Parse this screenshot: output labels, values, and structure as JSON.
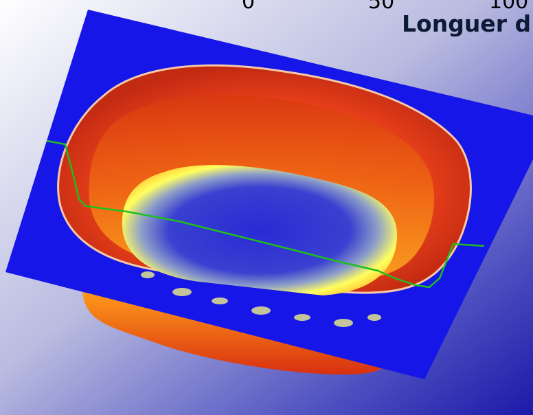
{
  "ruler": {
    "ticks": [
      "0",
      "50",
      "100"
    ],
    "title": "Longuer d"
  },
  "colors": {
    "background_light": "#ffffff",
    "background_dark": "#1a1aa8",
    "plane": "#1616e8",
    "profile_line": "#1fbf1f",
    "hot": "#d42a10",
    "warm": "#ff8c18",
    "yellow": "#ffff3a",
    "cold": "#2a2ad0"
  }
}
